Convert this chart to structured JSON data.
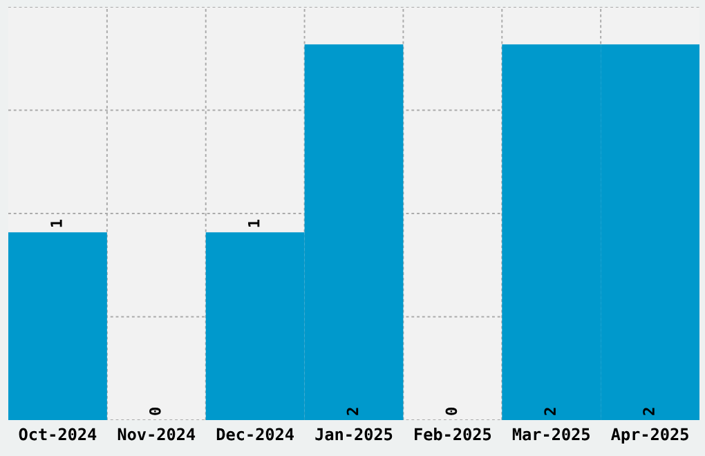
{
  "chart_data": {
    "type": "bar",
    "categories": [
      "Oct-2024",
      "Nov-2024",
      "Dec-2024",
      "Jan-2025",
      "Feb-2025",
      "Mar-2025",
      "Apr-2025"
    ],
    "values": [
      1,
      0,
      1,
      2,
      0,
      2,
      2
    ],
    "color": "#0099cc",
    "ylim": [
      0,
      2.2
    ],
    "yticks": [
      {
        "value": 0,
        "label": null
      },
      {
        "value": 0.55,
        "label": null
      },
      {
        "value": 1.1,
        "label": null
      },
      {
        "value": 1.65,
        "label": null
      },
      {
        "value": 2.2,
        "label": null
      }
    ],
    "tick_labels": "x",
    "grid": true,
    "data_labels": true
  }
}
